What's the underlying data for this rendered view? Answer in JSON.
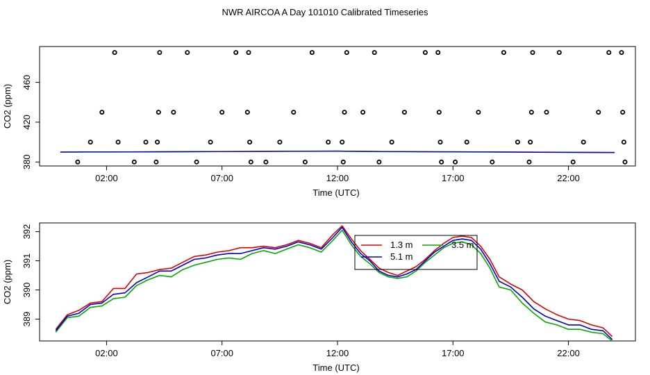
{
  "title": "NWR AIRCOA A  Day 101010  Calibrated Timeseries",
  "colors": {
    "red": "#dd0000",
    "green": "#00aa00",
    "blue": "#0000cc",
    "axis": "#000000"
  },
  "chart_data": [
    {
      "type": "scatter",
      "xlabel": "Time (UTC)",
      "ylabel": "CO2 (ppm)",
      "x_tick_labels": [
        "02:00",
        "07:00",
        "12:00",
        "17:00",
        "22:00"
      ],
      "x_tick_values": [
        2,
        7,
        12,
        17,
        22
      ],
      "y_tick_labels": [
        "380",
        "420",
        "460"
      ],
      "y_tick_values": [
        380,
        420,
        460
      ],
      "xlim": [
        -0.9,
        24.9
      ],
      "ylim": [
        376,
        496
      ],
      "grid": false,
      "series": [
        {
          "marker": "open-circle",
          "points": [
            [
              0.75,
              380
            ],
            [
              1.3,
              400
            ],
            [
              1.8,
              430
            ],
            [
              2.35,
              490
            ],
            [
              2.5,
              400
            ],
            [
              3.2,
              380
            ],
            [
              3.7,
              400
            ],
            [
              4.15,
              380
            ],
            [
              4.2,
              400
            ],
            [
              4.25,
              430
            ],
            [
              4.3,
              490
            ],
            [
              4.9,
              430
            ],
            [
              5.5,
              490
            ],
            [
              5.9,
              380
            ],
            [
              6.5,
              400
            ],
            [
              7.0,
              430
            ],
            [
              7.6,
              490
            ],
            [
              8.1,
              430
            ],
            [
              8.15,
              490
            ],
            [
              8.2,
              400
            ],
            [
              8.25,
              380
            ],
            [
              8.9,
              380
            ],
            [
              9.5,
              400
            ],
            [
              10.1,
              430
            ],
            [
              10.6,
              380
            ],
            [
              10.9,
              490
            ],
            [
              11.6,
              400
            ],
            [
              12.2,
              400
            ],
            [
              12.25,
              380
            ],
            [
              12.3,
              430
            ],
            [
              12.4,
              490
            ],
            [
              13.1,
              430
            ],
            [
              13.6,
              490
            ],
            [
              13.8,
              380
            ],
            [
              14.35,
              400
            ],
            [
              14.9,
              430
            ],
            [
              15.8,
              490
            ],
            [
              16.35,
              490
            ],
            [
              16.4,
              430
            ],
            [
              16.45,
              400
            ],
            [
              16.5,
              380
            ],
            [
              17.1,
              380
            ],
            [
              17.6,
              400
            ],
            [
              18.1,
              430
            ],
            [
              18.7,
              380
            ],
            [
              19.2,
              490
            ],
            [
              19.8,
              400
            ],
            [
              20.3,
              380
            ],
            [
              20.35,
              400
            ],
            [
              20.4,
              430
            ],
            [
              20.45,
              490
            ],
            [
              21.05,
              430
            ],
            [
              21.6,
              490
            ],
            [
              22.2,
              380
            ],
            [
              22.65,
              400
            ],
            [
              23.3,
              430
            ],
            [
              23.75,
              490
            ],
            [
              24.3,
              490
            ],
            [
              24.35,
              430
            ],
            [
              24.4,
              400
            ],
            [
              24.45,
              380
            ]
          ]
        }
      ],
      "lines": [
        {
          "color": "red",
          "x": [
            0,
            2,
            5,
            8,
            10,
            12,
            14,
            17,
            20,
            24
          ],
          "values": [
            390.0,
            390.1,
            390.4,
            390.6,
            390.8,
            390.9,
            390.5,
            390.2,
            390.0,
            389.6
          ]
        },
        {
          "color": "green",
          "x": [
            0,
            2,
            5,
            8,
            10,
            12,
            14,
            17,
            20,
            24
          ],
          "values": [
            389.9,
            390.0,
            390.3,
            390.5,
            390.7,
            390.8,
            390.4,
            390.1,
            389.8,
            389.4
          ]
        },
        {
          "color": "blue",
          "x": [
            0,
            2,
            5,
            8,
            10,
            12,
            14,
            17,
            20,
            24
          ],
          "values": [
            390.0,
            390.1,
            390.3,
            390.6,
            390.8,
            390.9,
            390.5,
            390.2,
            389.9,
            389.5
          ]
        }
      ]
    },
    {
      "type": "line",
      "xlabel": "Time (UTC)",
      "ylabel": "CO2 (ppm)",
      "x_tick_labels": [
        "02:00",
        "07:00",
        "12:00",
        "17:00",
        "22:00"
      ],
      "x_tick_values": [
        2,
        7,
        12,
        17,
        22
      ],
      "y_tick_labels": [
        "389",
        "390",
        "391",
        "392"
      ],
      "y_tick_values": [
        389,
        390,
        391,
        392
      ],
      "xlim": [
        -0.9,
        24.9
      ],
      "ylim": [
        388.25,
        392.3
      ],
      "grid": false,
      "legend": "top-center",
      "x": [
        -0.2,
        0.3,
        0.8,
        1.3,
        1.8,
        2.3,
        2.8,
        3.3,
        3.8,
        4.3,
        4.8,
        5.3,
        5.8,
        6.3,
        6.8,
        7.3,
        7.8,
        8.3,
        8.8,
        9.3,
        9.8,
        10.3,
        10.8,
        11.3,
        11.8,
        12.2,
        12.6,
        13.0,
        13.4,
        13.8,
        14.2,
        14.6,
        15.0,
        15.4,
        15.8,
        16.2,
        16.6,
        17.0,
        17.4,
        17.8,
        18.2,
        18.6,
        19.0,
        19.5,
        20.0,
        20.5,
        21.0,
        21.5,
        22.0,
        22.5,
        23.0,
        23.5,
        23.9
      ],
      "series": [
        {
          "name": "1.3 m",
          "color": "red",
          "values": [
            388.65,
            389.15,
            389.3,
            389.55,
            389.6,
            390.05,
            390.05,
            390.55,
            390.6,
            390.7,
            390.75,
            390.95,
            391.15,
            391.2,
            391.3,
            391.35,
            391.45,
            391.45,
            391.5,
            391.45,
            391.55,
            391.7,
            391.6,
            391.45,
            391.9,
            392.2,
            391.75,
            391.35,
            391.05,
            390.75,
            390.6,
            390.5,
            390.65,
            390.8,
            391.05,
            391.35,
            391.6,
            391.8,
            391.85,
            391.8,
            391.5,
            391.05,
            390.45,
            390.2,
            390.0,
            389.6,
            389.35,
            389.15,
            389.0,
            388.95,
            388.8,
            388.7,
            388.4
          ]
        },
        {
          "name": "3.5 m",
          "color": "green",
          "values": [
            388.55,
            389.05,
            389.1,
            389.4,
            389.45,
            389.7,
            389.75,
            390.15,
            390.35,
            390.5,
            390.45,
            390.7,
            390.85,
            390.95,
            391.05,
            391.1,
            391.05,
            391.25,
            391.35,
            391.25,
            391.4,
            391.55,
            391.45,
            391.3,
            391.7,
            392.05,
            391.55,
            391.15,
            390.9,
            390.6,
            390.45,
            390.4,
            390.45,
            390.65,
            390.95,
            391.2,
            391.45,
            391.6,
            391.65,
            391.55,
            391.25,
            390.75,
            390.1,
            390.0,
            389.55,
            389.2,
            388.9,
            388.8,
            388.65,
            388.65,
            388.55,
            388.5,
            388.25
          ]
        },
        {
          "name": "5.1 m",
          "color": "blue",
          "values": [
            388.6,
            389.1,
            389.2,
            389.5,
            389.55,
            389.85,
            389.9,
            390.25,
            390.45,
            390.65,
            390.65,
            390.85,
            391.05,
            391.1,
            391.2,
            391.25,
            391.25,
            391.35,
            391.45,
            391.4,
            391.5,
            391.65,
            391.55,
            391.4,
            391.8,
            392.15,
            391.65,
            391.25,
            391.0,
            390.65,
            390.5,
            390.45,
            390.55,
            390.7,
            391.0,
            391.3,
            391.5,
            391.7,
            391.75,
            391.7,
            391.4,
            390.9,
            390.3,
            390.1,
            389.75,
            389.35,
            389.1,
            388.95,
            388.8,
            388.8,
            388.65,
            388.6,
            388.3
          ]
        }
      ]
    }
  ]
}
